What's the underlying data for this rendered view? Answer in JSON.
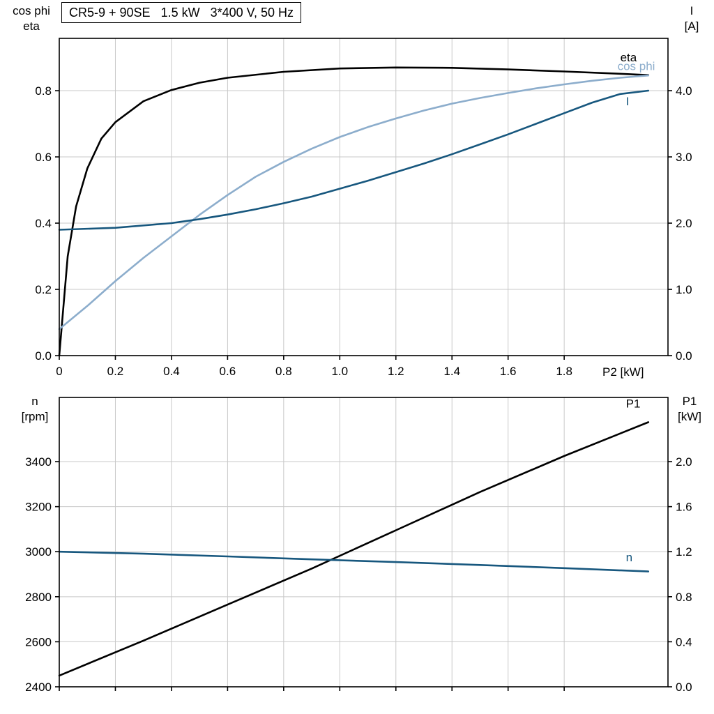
{
  "colors": {
    "black": "#000000",
    "dark_blue": "#17577e",
    "light_blue": "#8cadcc",
    "grid": "#c8c8c8"
  },
  "chart_data": [
    {
      "name": "motor-efficiency-current-chart",
      "type": "line",
      "title": "CR5-9 + 90SE   1.5 kW   3*400 V, 50 Hz",
      "x_axis": {
        "label": "P2 [kW]",
        "lim": [
          0,
          2.17
        ],
        "ticks": [
          0,
          0.2,
          0.4,
          0.6,
          0.8,
          1.0,
          1.2,
          1.4,
          1.6,
          1.8
        ],
        "tick_labels": [
          "0",
          "0.2",
          "0.4",
          "0.6",
          "0.8",
          "1.0",
          "1.2",
          "1.4",
          "1.6",
          "1.8"
        ]
      },
      "left_axis": {
        "label_lines": [
          "cos phi",
          "eta"
        ],
        "lim": [
          0,
          0.958
        ],
        "ticks": [
          0,
          0.2,
          0.4,
          0.6,
          0.8
        ],
        "tick_labels": [
          "0.0",
          "0.2",
          "0.4",
          "0.6",
          "0.8"
        ]
      },
      "right_axis": {
        "label_lines": [
          "I",
          "[A]"
        ],
        "lim": [
          0,
          4.79
        ],
        "ticks": [
          0,
          1,
          2,
          3,
          4
        ],
        "tick_labels": [
          "0.0",
          "1.0",
          "2.0",
          "3.0",
          "4.0"
        ]
      },
      "series": [
        {
          "name": "eta",
          "axis": "left",
          "color": "black",
          "points": [
            [
              0,
              0
            ],
            [
              0.03,
              0.3
            ],
            [
              0.06,
              0.45
            ],
            [
              0.1,
              0.565
            ],
            [
              0.15,
              0.655
            ],
            [
              0.2,
              0.705
            ],
            [
              0.3,
              0.768
            ],
            [
              0.4,
              0.802
            ],
            [
              0.5,
              0.824
            ],
            [
              0.6,
              0.839
            ],
            [
              0.8,
              0.857
            ],
            [
              1.0,
              0.867
            ],
            [
              1.2,
              0.87
            ],
            [
              1.4,
              0.869
            ],
            [
              1.6,
              0.864
            ],
            [
              1.8,
              0.858
            ],
            [
              2.0,
              0.851
            ],
            [
              2.1,
              0.847
            ]
          ]
        },
        {
          "name": "cos-phi",
          "axis": "left",
          "color": "light_blue",
          "points": [
            [
              0,
              0.08
            ],
            [
              0.1,
              0.15
            ],
            [
              0.2,
              0.225
            ],
            [
              0.3,
              0.295
            ],
            [
              0.4,
              0.36
            ],
            [
              0.5,
              0.425
            ],
            [
              0.6,
              0.485
            ],
            [
              0.7,
              0.54
            ],
            [
              0.8,
              0.585
            ],
            [
              0.9,
              0.625
            ],
            [
              1.0,
              0.66
            ],
            [
              1.1,
              0.69
            ],
            [
              1.2,
              0.716
            ],
            [
              1.3,
              0.74
            ],
            [
              1.4,
              0.761
            ],
            [
              1.5,
              0.778
            ],
            [
              1.6,
              0.793
            ],
            [
              1.7,
              0.807
            ],
            [
              1.8,
              0.819
            ],
            [
              1.9,
              0.83
            ],
            [
              2.0,
              0.839
            ],
            [
              2.1,
              0.846
            ]
          ]
        },
        {
          "name": "current",
          "axis": "right",
          "color": "dark_blue",
          "points": [
            [
              0,
              1.9
            ],
            [
              0.2,
              1.93
            ],
            [
              0.4,
              2.0
            ],
            [
              0.5,
              2.06
            ],
            [
              0.6,
              2.13
            ],
            [
              0.7,
              2.21
            ],
            [
              0.8,
              2.3
            ],
            [
              0.9,
              2.4
            ],
            [
              1.0,
              2.52
            ],
            [
              1.1,
              2.64
            ],
            [
              1.2,
              2.77
            ],
            [
              1.3,
              2.9
            ],
            [
              1.4,
              3.04
            ],
            [
              1.5,
              3.19
            ],
            [
              1.6,
              3.34
            ],
            [
              1.7,
              3.5
            ],
            [
              1.8,
              3.66
            ],
            [
              1.9,
              3.82
            ],
            [
              2.0,
              3.95
            ],
            [
              2.1,
              4.0
            ]
          ]
        }
      ],
      "annotations": [
        {
          "text": "eta",
          "x": 2.0,
          "value": 0.888,
          "axis": "left",
          "color": "black"
        },
        {
          "text": "cos phi",
          "x": 1.99,
          "value": 0.862,
          "axis": "left",
          "color": "light_blue"
        },
        {
          "text": "I",
          "x": 2.02,
          "value": 3.78,
          "axis": "right",
          "color": "dark_blue"
        }
      ]
    },
    {
      "name": "speed-input-power-chart",
      "type": "line",
      "title": "",
      "x_axis": {
        "label": "",
        "lim": [
          0,
          2.17
        ],
        "ticks": [
          0,
          0.2,
          0.4,
          0.6,
          0.8,
          1.0,
          1.2,
          1.4,
          1.6,
          1.8
        ],
        "tick_labels": [
          "",
          "",
          "",
          "",
          "",
          "",
          "",
          "",
          "",
          ""
        ]
      },
      "left_axis": {
        "label_lines": [
          "n",
          "[rpm]"
        ],
        "lim": [
          2400,
          3685
        ],
        "ticks": [
          2400,
          2600,
          2800,
          3000,
          3200,
          3400
        ],
        "tick_labels": [
          "2400",
          "2600",
          "2800",
          "3000",
          "3200",
          "3400"
        ]
      },
      "right_axis": {
        "label_lines": [
          "P1",
          "[kW]"
        ],
        "lim": [
          0,
          2.57
        ],
        "ticks": [
          0,
          0.4,
          0.8,
          1.2,
          1.6,
          2.0
        ],
        "tick_labels": [
          "0.0",
          "0.4",
          "0.8",
          "1.2",
          "1.6",
          "2.0"
        ]
      },
      "series": [
        {
          "name": "P1",
          "axis": "right",
          "color": "black",
          "points": [
            [
              0,
              0.1
            ],
            [
              0.3,
              0.41
            ],
            [
              0.6,
              0.73
            ],
            [
              0.9,
              1.05
            ],
            [
              1.2,
              1.39
            ],
            [
              1.5,
              1.73
            ],
            [
              1.8,
              2.05
            ],
            [
              2.1,
              2.35
            ]
          ]
        },
        {
          "name": "n",
          "axis": "left",
          "color": "dark_blue",
          "points": [
            [
              0,
              3000
            ],
            [
              0.3,
              2991
            ],
            [
              0.6,
              2979
            ],
            [
              0.9,
              2966
            ],
            [
              1.2,
              2954
            ],
            [
              1.5,
              2941
            ],
            [
              1.8,
              2927
            ],
            [
              2.1,
              2912
            ]
          ]
        }
      ],
      "annotations": [
        {
          "text": "P1",
          "x": 2.02,
          "value": 2.48,
          "axis": "right",
          "color": "black"
        },
        {
          "text": "n",
          "x": 2.02,
          "value": 2957,
          "axis": "left",
          "color": "dark_blue"
        }
      ]
    }
  ]
}
